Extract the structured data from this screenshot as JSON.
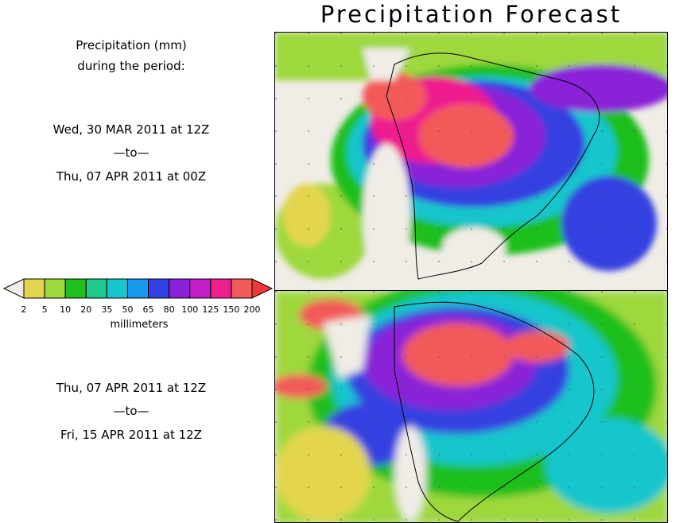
{
  "title": "Precipitation Forecast",
  "subtitle": {
    "line1": "Precipitation (mm)",
    "line2": "during the period:"
  },
  "period1": {
    "start": "Wed, 30 MAR 2011 at 12Z",
    "sep": "—to—",
    "end": "Thu, 07 APR 2011 at 00Z"
  },
  "period2": {
    "start": "Thu, 07 APR 2011 at 12Z",
    "sep": "—to—",
    "end": "Fri, 15 APR 2011 at 12Z"
  },
  "legend": {
    "unit": "millimeters",
    "ticks": [
      "2",
      "5",
      "10",
      "20",
      "35",
      "50",
      "65",
      "80",
      "100",
      "125",
      "150",
      "200"
    ],
    "colors": [
      "#f2ece4",
      "#e3d64e",
      "#9ed83c",
      "#1fbf1f",
      "#1fc98c",
      "#17c6cc",
      "#1a98f0",
      "#3540e0",
      "#8a20d8",
      "#c31ec7",
      "#ee1f8e",
      "#f25a5a",
      "#f0383a"
    ]
  }
}
